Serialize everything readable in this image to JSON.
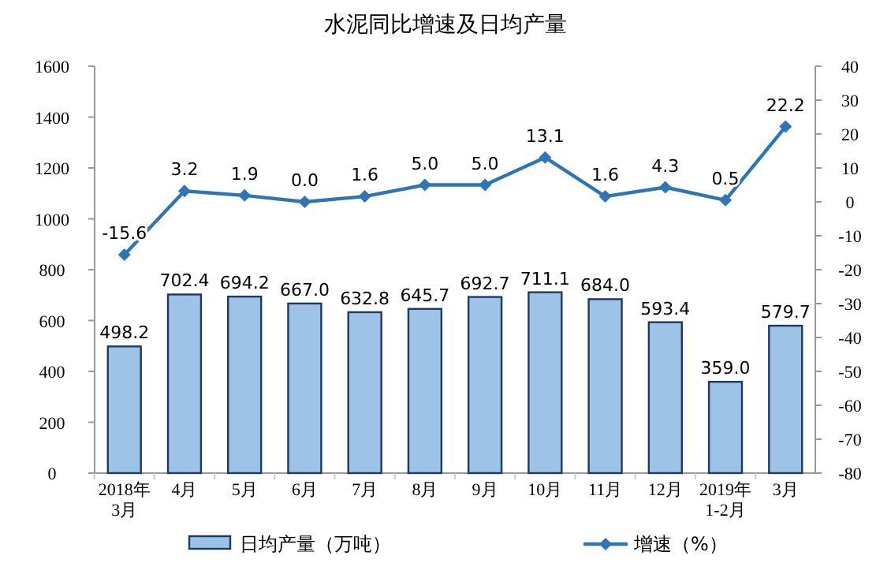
{
  "chart_data": {
    "type": "bar",
    "title": "水泥同比增速及日均产量",
    "categories": [
      "2018年\n3月",
      "4月",
      "5月",
      "6月",
      "7月",
      "8月",
      "9月",
      "10月",
      "11月",
      "12月",
      "2019年\n1-2月",
      "3月"
    ],
    "series": [
      {
        "name": "日均产量（万吨）",
        "color": "#9dc3e6",
        "values": [
          498.2,
          702.4,
          694.2,
          667,
          632.8,
          645.7,
          692.7,
          711.1,
          684,
          593.4,
          359,
          579.7
        ],
        "value_labels": [
          "498.2",
          "702.4",
          "694.2",
          "667.0",
          "632.8",
          "645.7",
          "692.7",
          "711.1",
          "684.0",
          "593.4",
          "359.0",
          "579.7"
        ]
      },
      {
        "name": "增速（%）",
        "type": "line",
        "axis": "y2",
        "color": "#2e75b6",
        "values": [
          -15.6,
          3.2,
          1.9,
          0,
          1.6,
          5,
          5,
          13.1,
          1.6,
          4.3,
          0.5,
          22.2
        ],
        "value_labels": [
          "-15.6",
          "3.2",
          "1.9",
          "0.0",
          "1.6",
          "5.0",
          "5.0",
          "13.1",
          "1.6",
          "4.3",
          "0.5",
          "22.2"
        ]
      }
    ],
    "ylim": [
      0,
      1600
    ],
    "yticks": [
      0,
      200,
      400,
      600,
      800,
      1000,
      1200,
      1400,
      1600
    ],
    "y2lim": [
      -80,
      40
    ],
    "y2ticks": [
      -80,
      -70,
      -60,
      -50,
      -40,
      -30,
      -20,
      -10,
      0,
      10,
      20,
      30,
      40
    ],
    "legend": "bottom",
    "marker": "diamond",
    "grid": false
  }
}
